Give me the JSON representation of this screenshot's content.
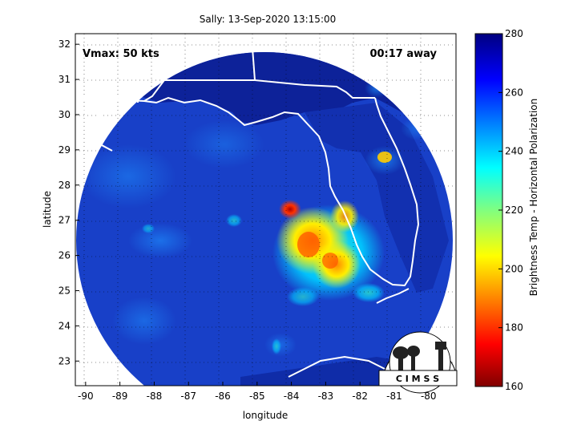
{
  "title": "Sally: 13-Sep-2020 13:15:00",
  "vmax_label": "Vmax: 50 kts",
  "time_label": "00:17 away",
  "xlabel": "longitude",
  "ylabel": "latitude",
  "colorbar_label": "Brightness Temp - Horizontal Polarization",
  "logo_text": "C I M S S",
  "colors": {
    "background_disk": "#1a3ec9",
    "land_dark": "#0c1f8f",
    "coast": "#ffffff"
  },
  "chart_data": {
    "type": "heatmap",
    "title": "Sally: 13-Sep-2020 13:15:00",
    "xlabel": "longitude",
    "ylabel": "latitude",
    "xlim": [
      -90.3,
      -79.2
    ],
    "ylim": [
      22.3,
      32.3
    ],
    "xticks": [
      -90,
      -89,
      -88,
      -87,
      -86,
      -85,
      -84,
      -83,
      -82,
      -81,
      -80
    ],
    "yticks": [
      23,
      24,
      25,
      26,
      27,
      28,
      29,
      30,
      31,
      32
    ],
    "grid": true,
    "colorbar": {
      "label": "Brightness Temp - Horizontal Polarization",
      "min": 160,
      "max": 280,
      "ticks": [
        160,
        180,
        200,
        220,
        240,
        260,
        280
      ],
      "colormap": "jet"
    },
    "features": [
      {
        "name": "storm_core",
        "lon": -83.9,
        "lat": 27.4,
        "value_k": 175
      },
      {
        "name": "rainband_center",
        "lon": -82.8,
        "lat": 26.1,
        "value_k": 195
      }
    ]
  }
}
